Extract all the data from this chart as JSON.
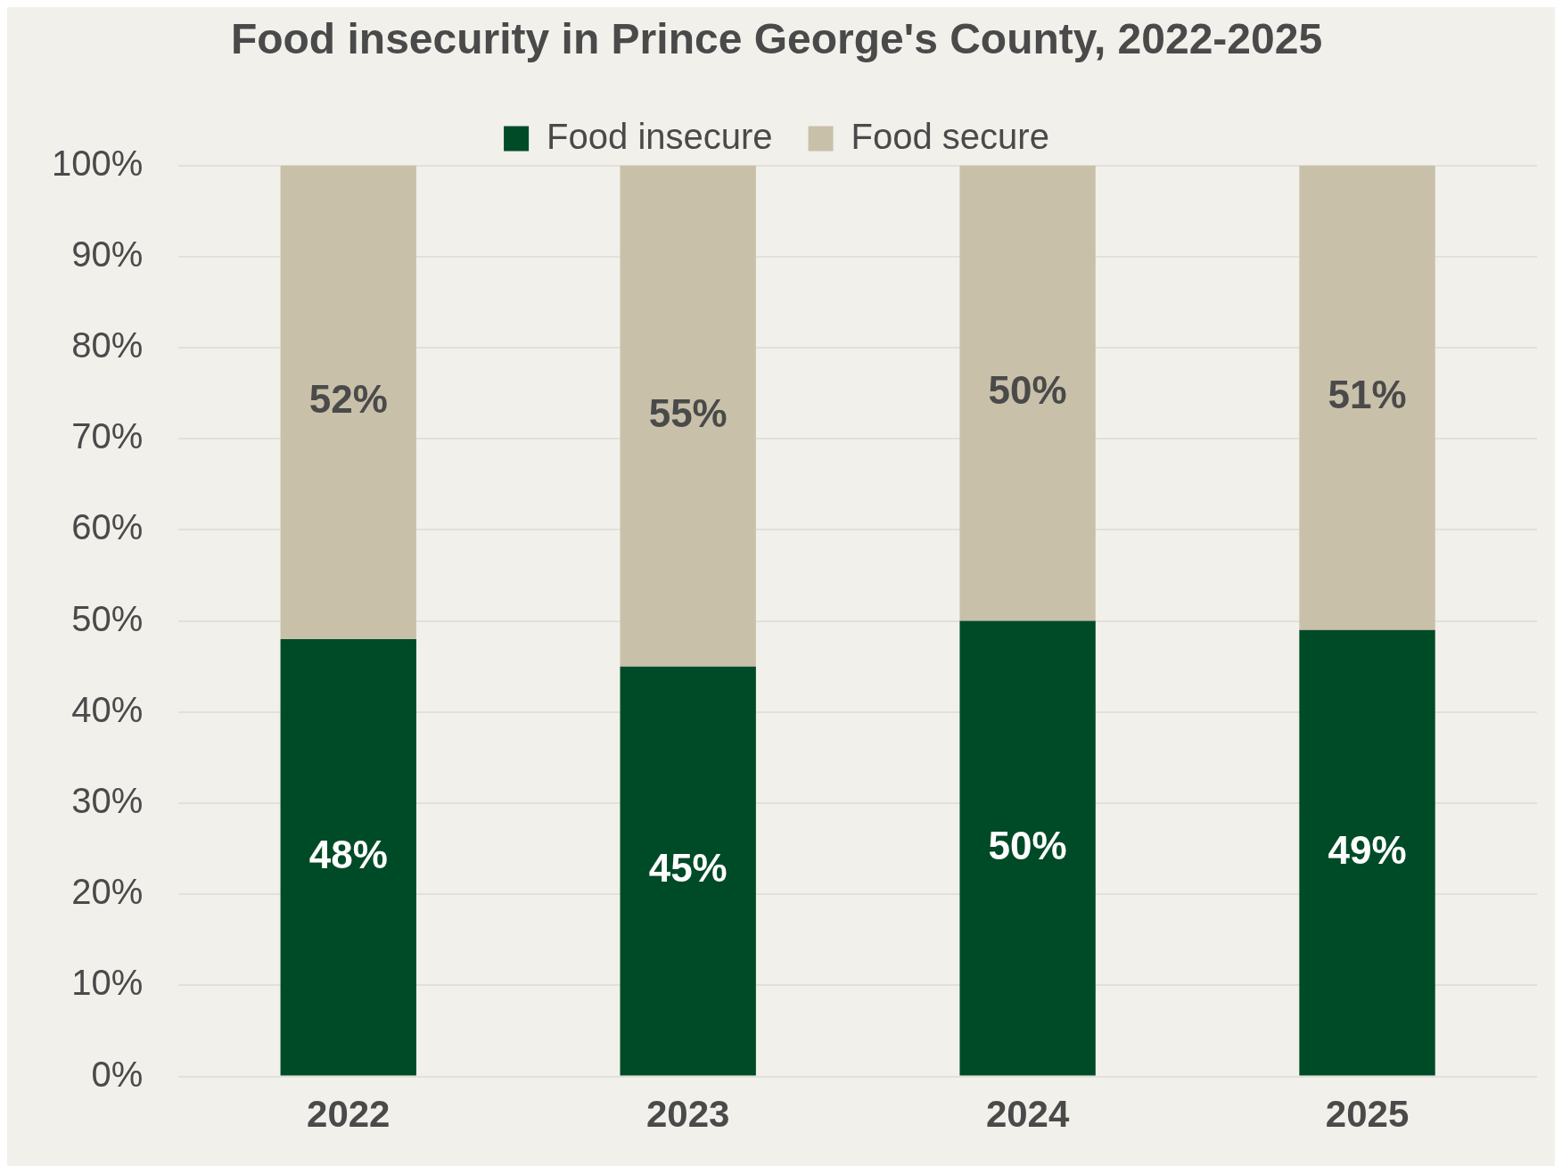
{
  "chart_data": {
    "type": "bar",
    "title": "Food insecurity in Prince George's County, 2022-2025",
    "categories": [
      "2022",
      "2023",
      "2024",
      "2025"
    ],
    "stacked": true,
    "series": [
      {
        "name": "Food insecure",
        "color": "#004b27",
        "values": [
          48,
          45,
          50,
          49
        ],
        "value_labels": [
          "48%",
          "45%",
          "50%",
          "49%"
        ]
      },
      {
        "name": "Food secure",
        "color": "#c9c0aa",
        "values": [
          52,
          55,
          50,
          51
        ],
        "value_labels": [
          "52%",
          "55%",
          "50%",
          "51%"
        ]
      }
    ],
    "ylim": [
      0,
      100
    ],
    "yticks": [
      {
        "value": 0,
        "label": "0%"
      },
      {
        "value": 10,
        "label": "10%"
      },
      {
        "value": 20,
        "label": "20%"
      },
      {
        "value": 30,
        "label": "30%"
      },
      {
        "value": 40,
        "label": "40%"
      },
      {
        "value": 50,
        "label": "50%"
      },
      {
        "value": 60,
        "label": "60%"
      },
      {
        "value": 70,
        "label": "70%"
      },
      {
        "value": 80,
        "label": "80%"
      },
      {
        "value": 90,
        "label": "90%"
      },
      {
        "value": 100,
        "label": "100%"
      }
    ],
    "grid": "y",
    "legend": "top"
  }
}
